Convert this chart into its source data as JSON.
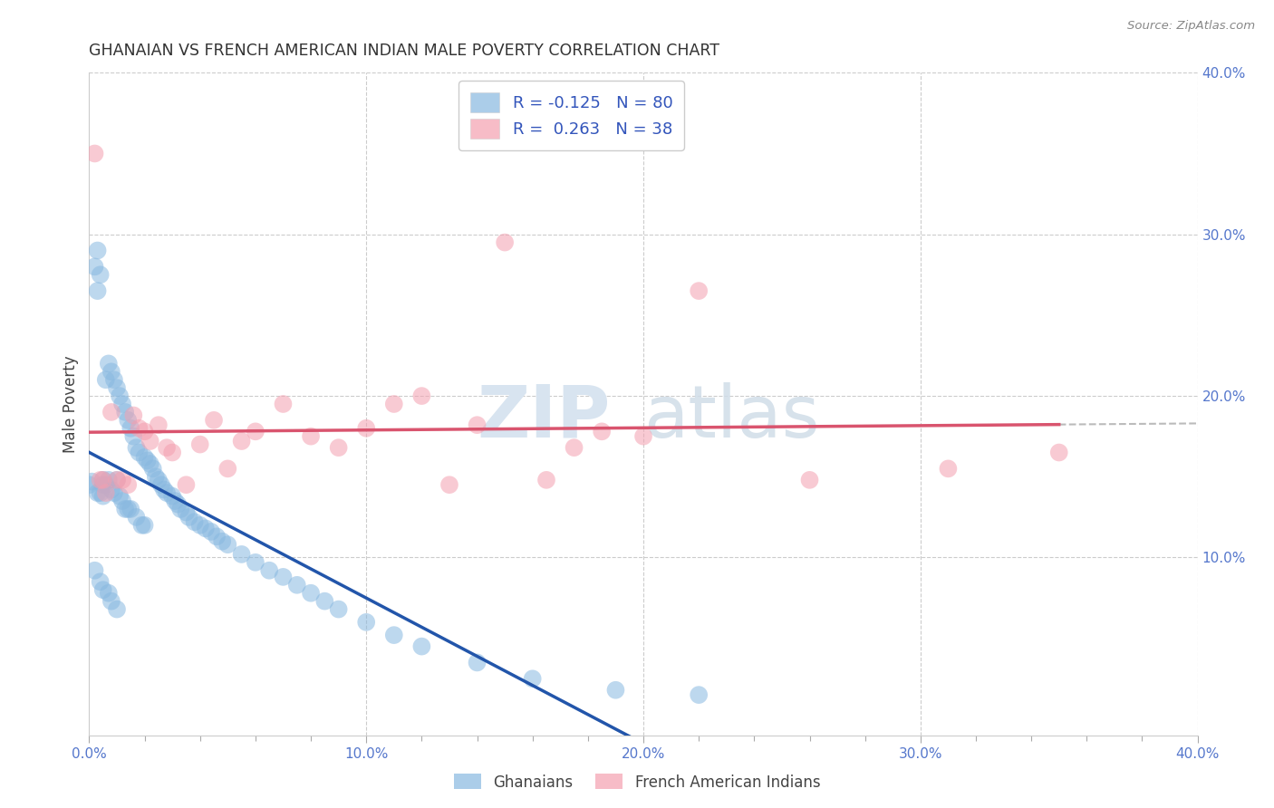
{
  "title": "GHANAIAN VS FRENCH AMERICAN INDIAN MALE POVERTY CORRELATION CHART",
  "source": "Source: ZipAtlas.com",
  "ylabel": "Male Poverty",
  "xlim": [
    0.0,
    0.4
  ],
  "ylim": [
    -0.01,
    0.4
  ],
  "xtick_labels": [
    "0.0%",
    "",
    "",
    "",
    "10.0%",
    "",
    "",
    "",
    "",
    "20.0%",
    "",
    "",
    "",
    "",
    "30.0%",
    "",
    "",
    "",
    "",
    "40.0%"
  ],
  "xtick_vals": [
    0.0,
    0.02,
    0.04,
    0.06,
    0.1,
    0.12,
    0.14,
    0.16,
    0.18,
    0.2,
    0.22,
    0.24,
    0.26,
    0.28,
    0.3,
    0.32,
    0.34,
    0.36,
    0.38,
    0.4
  ],
  "right_ytick_labels": [
    "10.0%",
    "20.0%",
    "30.0%",
    "40.0%"
  ],
  "right_ytick_vals": [
    0.1,
    0.2,
    0.3,
    0.4
  ],
  "ghanaian_color": "#88b8e0",
  "french_color": "#f4a0b0",
  "ghanaian_line_color": "#2255aa",
  "french_line_color": "#d9546e",
  "dashed_color": "#bbbbbb",
  "ghanaian_R": -0.125,
  "ghanaian_N": 80,
  "french_R": 0.263,
  "french_N": 38,
  "watermark_zip": "ZIP",
  "watermark_atlas": "atlas",
  "legend_label_1": "Ghanaians",
  "legend_label_2": "French American Indians",
  "ghanaian_scatter_x": [
    0.0,
    0.001,
    0.002,
    0.002,
    0.003,
    0.003,
    0.003,
    0.004,
    0.004,
    0.004,
    0.005,
    0.005,
    0.005,
    0.005,
    0.006,
    0.006,
    0.007,
    0.007,
    0.007,
    0.008,
    0.008,
    0.008,
    0.009,
    0.009,
    0.01,
    0.01,
    0.01,
    0.011,
    0.011,
    0.012,
    0.012,
    0.013,
    0.013,
    0.014,
    0.014,
    0.015,
    0.015,
    0.016,
    0.017,
    0.017,
    0.018,
    0.019,
    0.02,
    0.02,
    0.021,
    0.022,
    0.023,
    0.024,
    0.025,
    0.026,
    0.027,
    0.028,
    0.03,
    0.031,
    0.032,
    0.033,
    0.035,
    0.036,
    0.038,
    0.04,
    0.042,
    0.044,
    0.046,
    0.048,
    0.05,
    0.055,
    0.06,
    0.065,
    0.07,
    0.075,
    0.08,
    0.085,
    0.09,
    0.1,
    0.11,
    0.12,
    0.14,
    0.16,
    0.19,
    0.22
  ],
  "ghanaian_scatter_y": [
    0.145,
    0.147,
    0.28,
    0.092,
    0.29,
    0.265,
    0.14,
    0.275,
    0.14,
    0.085,
    0.148,
    0.145,
    0.138,
    0.08,
    0.21,
    0.145,
    0.22,
    0.148,
    0.078,
    0.215,
    0.142,
    0.073,
    0.21,
    0.14,
    0.205,
    0.148,
    0.068,
    0.2,
    0.138,
    0.195,
    0.135,
    0.19,
    0.13,
    0.185,
    0.13,
    0.18,
    0.13,
    0.175,
    0.168,
    0.125,
    0.165,
    0.12,
    0.162,
    0.12,
    0.16,
    0.158,
    0.155,
    0.15,
    0.148,
    0.145,
    0.142,
    0.14,
    0.138,
    0.135,
    0.133,
    0.13,
    0.128,
    0.125,
    0.122,
    0.12,
    0.118,
    0.116,
    0.113,
    0.11,
    0.108,
    0.102,
    0.097,
    0.092,
    0.088,
    0.083,
    0.078,
    0.073,
    0.068,
    0.06,
    0.052,
    0.045,
    0.035,
    0.025,
    0.018,
    0.015
  ],
  "french_scatter_x": [
    0.002,
    0.004,
    0.005,
    0.006,
    0.008,
    0.01,
    0.012,
    0.014,
    0.016,
    0.018,
    0.02,
    0.022,
    0.025,
    0.028,
    0.03,
    0.035,
    0.04,
    0.045,
    0.05,
    0.055,
    0.06,
    0.07,
    0.08,
    0.09,
    0.1,
    0.11,
    0.12,
    0.13,
    0.14,
    0.15,
    0.165,
    0.175,
    0.185,
    0.2,
    0.22,
    0.26,
    0.31,
    0.35
  ],
  "french_scatter_y": [
    0.35,
    0.148,
    0.148,
    0.14,
    0.19,
    0.148,
    0.148,
    0.145,
    0.188,
    0.18,
    0.178,
    0.172,
    0.182,
    0.168,
    0.165,
    0.145,
    0.17,
    0.185,
    0.155,
    0.172,
    0.178,
    0.195,
    0.175,
    0.168,
    0.18,
    0.195,
    0.2,
    0.145,
    0.182,
    0.295,
    0.148,
    0.168,
    0.178,
    0.175,
    0.265,
    0.148,
    0.155,
    0.165
  ]
}
